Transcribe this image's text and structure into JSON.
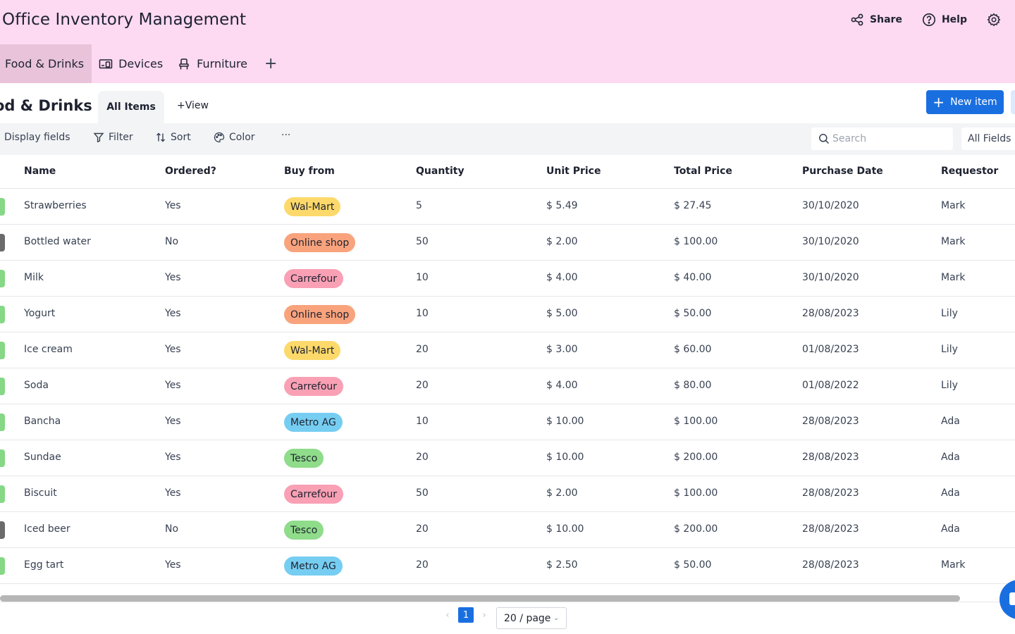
{
  "header": {
    "title": "Office Inventory Management",
    "share_label": "Share",
    "help_label": "Help"
  },
  "tabs": [
    {
      "label": "Food & Drinks",
      "icon": "none",
      "active": true
    },
    {
      "label": "Devices",
      "icon": "devices-icon"
    },
    {
      "label": "Furniture",
      "icon": "chair-icon"
    }
  ],
  "view": {
    "title": "od & Drinks",
    "active_view": "All Items",
    "add_view_label": "View",
    "new_item_label": "New item"
  },
  "toolbar": {
    "display_fields": "Display fields",
    "filter": "Filter",
    "sort": "Sort",
    "color": "Color",
    "more": "···",
    "search_placeholder": "Search",
    "all_fields": "All Fields"
  },
  "table": {
    "columns": [
      "Name",
      "Ordered?",
      "Buy from",
      "Quantity",
      "Unit Price",
      "Total Price",
      "Purchase Date",
      "Requestor"
    ],
    "rows": [
      {
        "name": "Strawberries",
        "ordered": "Yes",
        "buy_from": "Wal-Mart",
        "quantity": "5",
        "unit_price": "$ 5.49",
        "total_price": "$ 27.45",
        "date": "30/10/2020",
        "requestor": "Mark"
      },
      {
        "name": "Bottled water",
        "ordered": "No",
        "buy_from": "Online shop",
        "quantity": "50",
        "unit_price": "$ 2.00",
        "total_price": "$ 100.00",
        "date": "30/10/2020",
        "requestor": "Mark"
      },
      {
        "name": "Milk",
        "ordered": "Yes",
        "buy_from": "Carrefour",
        "quantity": "10",
        "unit_price": "$ 4.00",
        "total_price": "$ 40.00",
        "date": "30/10/2020",
        "requestor": "Mark"
      },
      {
        "name": "Yogurt",
        "ordered": "Yes",
        "buy_from": "Online shop",
        "quantity": "10",
        "unit_price": "$ 5.00",
        "total_price": "$ 50.00",
        "date": "28/08/2023",
        "requestor": "Lily"
      },
      {
        "name": "Ice cream",
        "ordered": "Yes",
        "buy_from": "Wal-Mart",
        "quantity": "20",
        "unit_price": "$ 3.00",
        "total_price": "$ 60.00",
        "date": "01/08/2023",
        "requestor": "Lily"
      },
      {
        "name": "Soda",
        "ordered": "Yes",
        "buy_from": "Carrefour",
        "quantity": "20",
        "unit_price": "$ 4.00",
        "total_price": "$ 80.00",
        "date": "01/08/2022",
        "requestor": "Lily"
      },
      {
        "name": "Bancha",
        "ordered": "Yes",
        "buy_from": "Metro AG",
        "quantity": "10",
        "unit_price": "$ 10.00",
        "total_price": "$ 100.00",
        "date": "28/08/2023",
        "requestor": "Ada"
      },
      {
        "name": "Sundae",
        "ordered": "Yes",
        "buy_from": "Tesco",
        "quantity": "20",
        "unit_price": "$ 10.00",
        "total_price": "$ 200.00",
        "date": "28/08/2023",
        "requestor": "Ada"
      },
      {
        "name": "Biscuit",
        "ordered": "Yes",
        "buy_from": "Carrefour",
        "quantity": "50",
        "unit_price": "$ 2.00",
        "total_price": "$ 100.00",
        "date": "28/08/2023",
        "requestor": "Ada"
      },
      {
        "name": "Iced beer",
        "ordered": "No",
        "buy_from": "Tesco",
        "quantity": "20",
        "unit_price": "$ 10.00",
        "total_price": "$ 200.00",
        "date": "28/08/2023",
        "requestor": "Ada"
      },
      {
        "name": "Egg tart",
        "ordered": "Yes",
        "buy_from": "Metro AG",
        "quantity": "20",
        "unit_price": "$ 2.50",
        "total_price": "$ 50.00",
        "date": "28/08/2023",
        "requestor": "Mark"
      }
    ]
  },
  "colors": {
    "header_bg": "#fdd9f2",
    "accent": "#1a6fe0",
    "ordered_yes": "#86d886",
    "ordered_no": "#6b6b6b",
    "vendor": {
      "Wal-Mart": "#fcd96a",
      "Online shop": "#f9a37c",
      "Carrefour": "#f9a0b4",
      "Metro AG": "#76cdf2",
      "Tesco": "#8fdc8a"
    }
  },
  "pagination": {
    "current_page": "1",
    "page_size_label": "20 / page"
  }
}
